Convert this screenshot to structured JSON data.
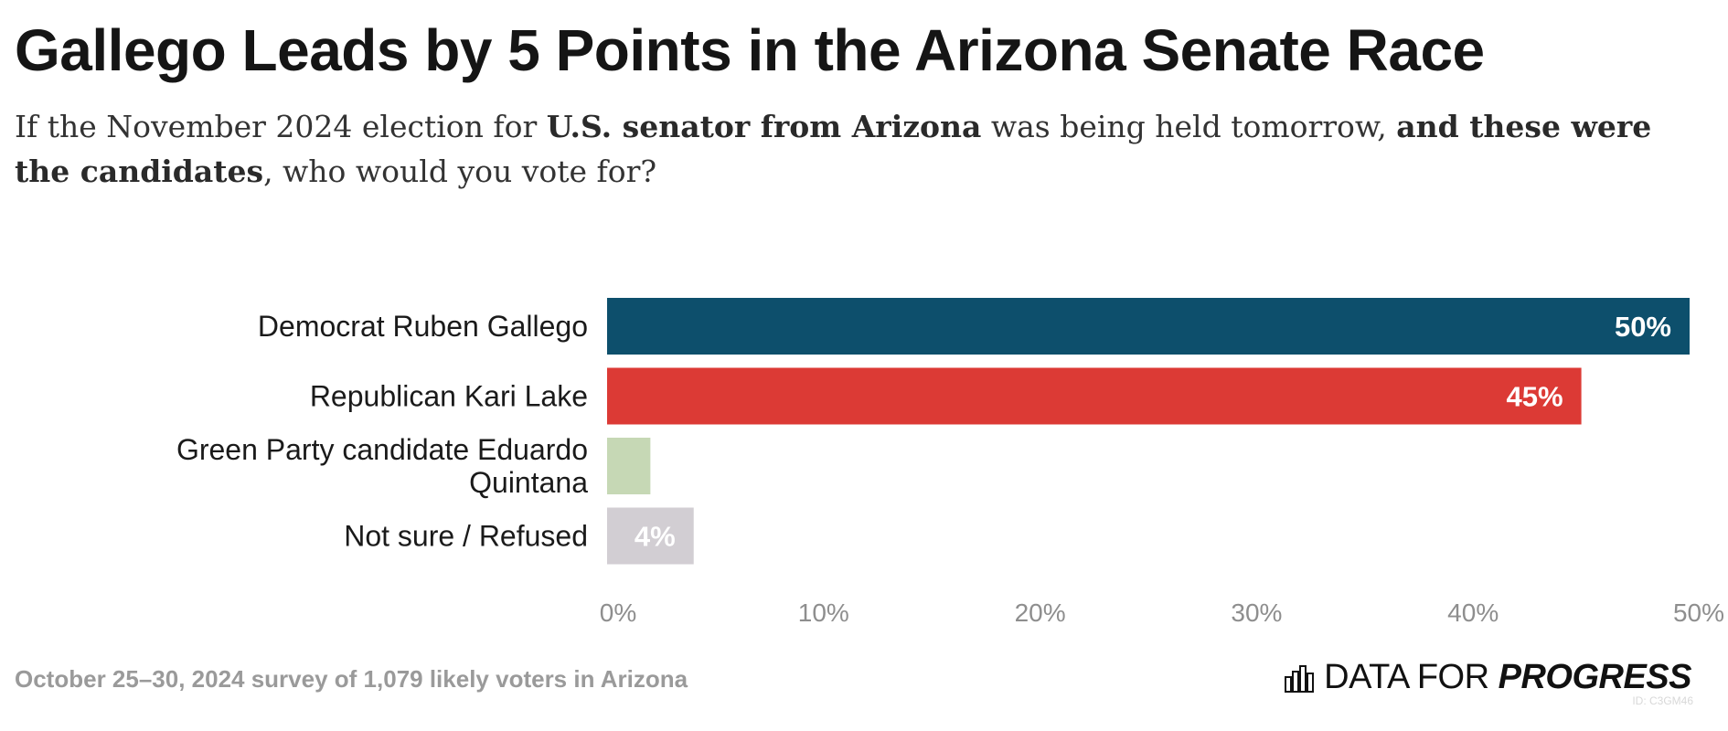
{
  "title": "Gallego Leads by 5 Points in the Arizona Senate Race",
  "subtitle": {
    "parts": [
      {
        "text": "If the November 2024 election for ",
        "bold": false
      },
      {
        "text": "U.S. senator from Arizona",
        "bold": true
      },
      {
        "text": " was being held tomorrow, ",
        "bold": false
      },
      {
        "text": "and these were the candidates",
        "bold": true
      },
      {
        "text": ", who would you vote for?",
        "bold": false
      }
    ]
  },
  "footer": "October 25–30, 2024 survey of 1,079 likely voters in Arizona",
  "brand": {
    "part1": "DATA FOR ",
    "part2": "PROGRESS",
    "icon": "bar-chart-logo-icon"
  },
  "chart_id": "ID: C3GM46",
  "chart_data": {
    "type": "bar",
    "orientation": "horizontal",
    "categories": [
      "Democrat Ruben Gallego",
      "Republican Kari Lake",
      "Green Party candidate Eduardo Quintana",
      "Not sure / Refused"
    ],
    "category_lines": [
      [
        "Democrat Ruben Gallego"
      ],
      [
        "Republican Kari Lake"
      ],
      [
        "Green Party candidate Eduardo",
        "Quintana"
      ],
      [
        "Not sure / Refused"
      ]
    ],
    "values": [
      50,
      45,
      2,
      4
    ],
    "value_labels": [
      "50%",
      "45%",
      "",
      "4%"
    ],
    "colors": [
      "#0d4f6c",
      "#dc3a35",
      "#c6d8b5",
      "#d2ced3"
    ],
    "xlim": [
      0,
      50
    ],
    "xticks": [
      0,
      10,
      20,
      30,
      40,
      50
    ],
    "xtick_labels": [
      "0%",
      "10%",
      "20%",
      "30%",
      "40%",
      "50%"
    ],
    "title": "Gallego Leads by 5 Points in the Arizona Senate Race",
    "xlabel": "",
    "ylabel": "",
    "grid": false,
    "legend": "none"
  }
}
